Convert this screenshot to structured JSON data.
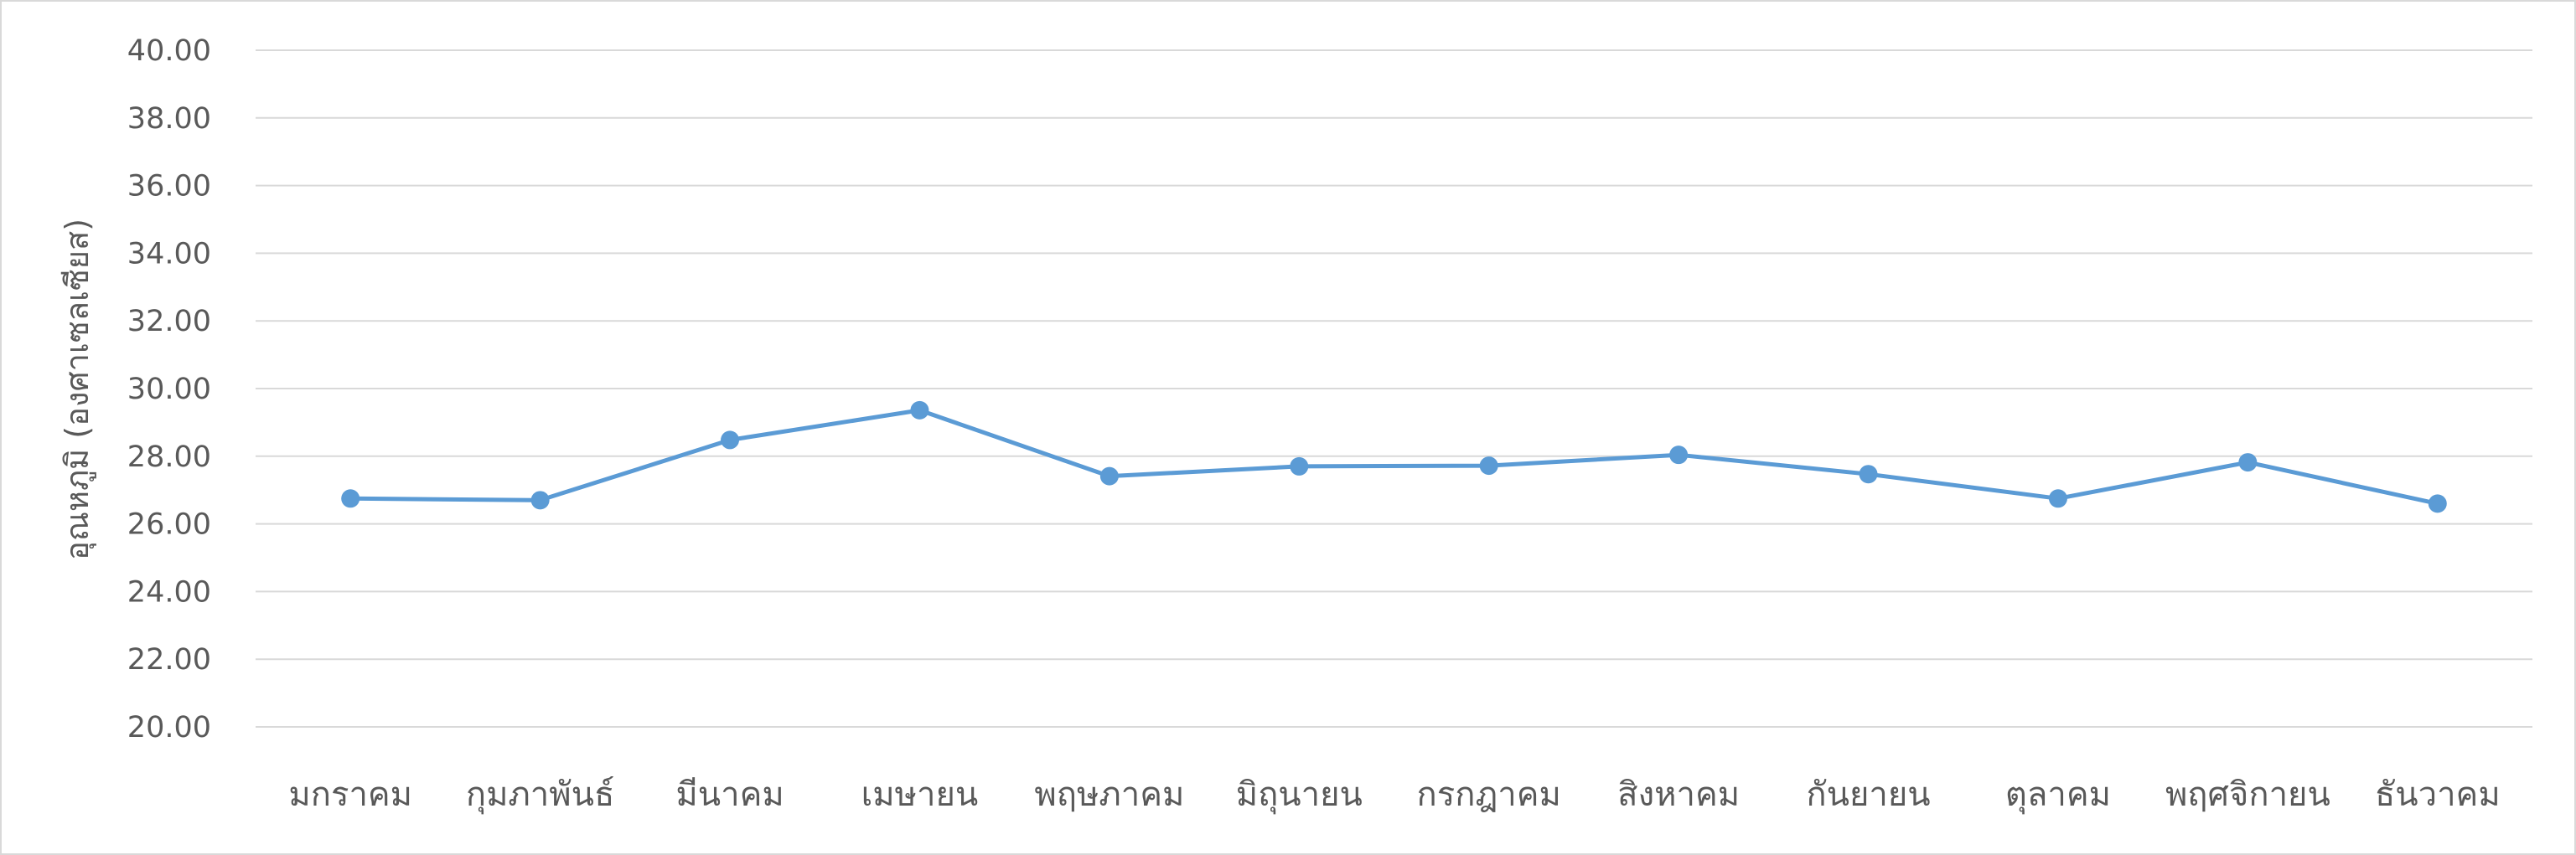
{
  "chart_data": {
    "type": "line",
    "title": "",
    "xlabel": "",
    "ylabel": "อุณหภูมิ (องศาเซลเซียส)",
    "categories": [
      "มกราคม",
      "กุมภาพันธ์",
      "มีนาคม",
      "เมษายน",
      "พฤษภาคม",
      "มิถุนายน",
      "กรกฎาคม",
      "สิงหาคม",
      "กันยายน",
      "ตุลาคม",
      "พฤศจิกายน",
      "ธันวาคม"
    ],
    "series": [
      {
        "values": [
          26.75,
          26.7,
          28.48,
          29.36,
          27.41,
          27.7,
          27.72,
          28.04,
          27.47,
          26.75,
          27.82,
          26.6
        ],
        "color": "#5b9bd5",
        "marker": "circle"
      }
    ],
    "ylim": [
      20,
      40
    ],
    "yticks": [
      "20.00",
      "22.00",
      "24.00",
      "26.00",
      "28.00",
      "30.00",
      "32.00",
      "34.00",
      "36.00",
      "38.00",
      "40.00"
    ],
    "grid": true,
    "gridColor": "#d9d9d9",
    "legend": "none"
  }
}
